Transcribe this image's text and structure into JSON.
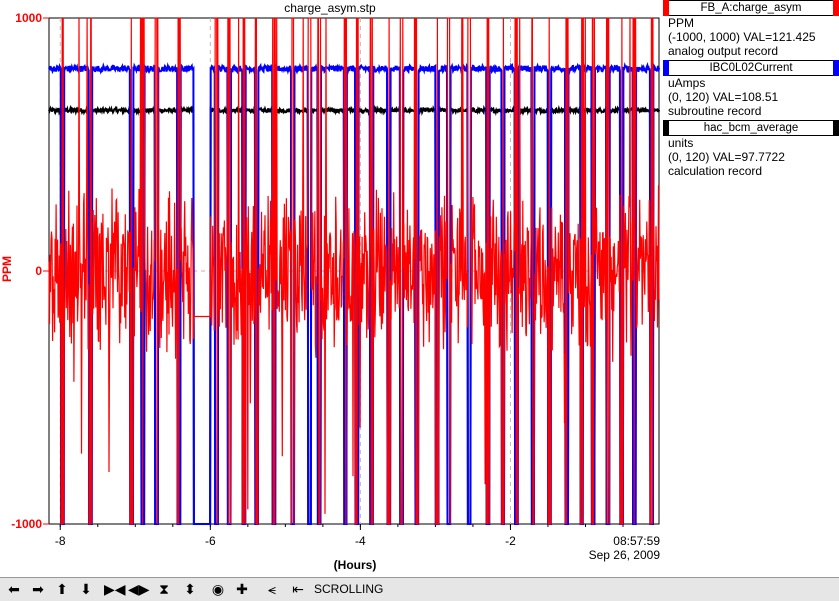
{
  "chart_data": {
    "type": "line",
    "title": "charge_asym.stp",
    "xlabel": "(Hours)",
    "ylabel": "PPM",
    "xlim": [
      -8.15,
      -0.02
    ],
    "ylim": [
      -1000,
      1000
    ],
    "xticks": [
      -8,
      -6,
      -4,
      -2
    ],
    "xtick_labels": [
      "-8",
      "-6",
      "-4",
      "-2"
    ],
    "yticks": [
      1000,
      0,
      -1000
    ],
    "ytick_labels": [
      "1000",
      "0",
      "-1000"
    ],
    "grid": true,
    "timestamp_time": "08:57:59",
    "timestamp_date": "Sep 26, 2009",
    "series": [
      {
        "name": "FB_A:charge_asym",
        "color": "#ff0000",
        "units": "PPM",
        "range": "(-1000, 1000)",
        "value": 121.425,
        "record": "analog output record",
        "typical": 0,
        "noise": 230
      },
      {
        "name": "IBC0L02Current",
        "color": "#0000ff",
        "units": "uAmps",
        "range": "(0, 120)",
        "value": 108.51,
        "record": "subroutine record",
        "typical": 800,
        "noise": 12
      },
      {
        "name": "hac_bcm_average",
        "color": "#000000",
        "units": "units",
        "range": "(0, 120)",
        "value": 97.7722,
        "record": "calculation record",
        "typical": 635,
        "noise": 8
      }
    ],
    "beam_trips_hours": [
      -7.97,
      -7.6,
      -7.05,
      -6.9,
      -6.72,
      -6.42,
      -6.17,
      -5.92,
      -5.75,
      -5.55,
      -5.38,
      -5.15,
      -4.9,
      -4.68,
      -4.55,
      -4.2,
      -4.05,
      -3.85,
      -3.62,
      -3.45,
      -3.25,
      -2.98,
      -2.82,
      -2.55,
      -2.3,
      -2.1,
      -1.92,
      -1.7,
      -1.48,
      -1.25,
      -1.05,
      -0.9,
      -0.7,
      -0.52,
      -0.35,
      -0.12
    ],
    "gap_start_hours": -6.22,
    "gap_end_hours": -6.0
  },
  "legend": [
    {
      "name": "FB_A:charge_asym",
      "units": "PPM",
      "detail": "(-1000, 1000) VAL=121.425",
      "record": "analog output record",
      "color": "#ff0000"
    },
    {
      "name": "IBC0L02Current",
      "units": "uAmps",
      "detail": "(0, 120) VAL=108.51",
      "record": "subroutine record",
      "color": "#0000ff"
    },
    {
      "name": "hac_bcm_average",
      "units": "units",
      "detail": "(0, 120) VAL=97.7722",
      "record": "calculation record",
      "color": "#000000"
    }
  ],
  "toolbar": {
    "scroll_label": "SCROLLING",
    "icons": [
      "arrow-left-icon",
      "arrow-right-icon",
      "arrow-up-icon",
      "arrow-down-icon",
      "expand-horizontal-icon",
      "compress-horizontal-icon",
      "expand-vertical-icon",
      "compress-vertical-icon",
      "zoom-circle-icon",
      "crosshair-plus-icon",
      "autoscale-icon",
      "scroll-mode-icon"
    ]
  }
}
